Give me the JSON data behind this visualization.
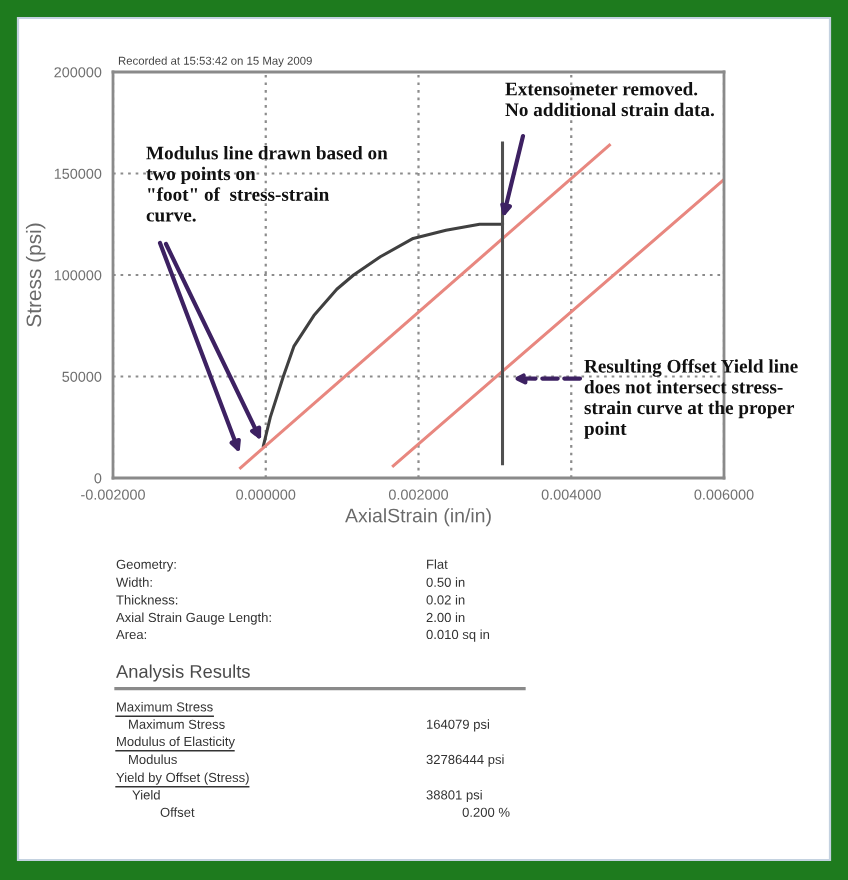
{
  "chart_data": {
    "type": "line",
    "xlabel": "AxialStrain (in/in)",
    "ylabel": "Stress (psi)",
    "xlim": [
      -0.002,
      0.006
    ],
    "ylim": [
      0,
      200000
    ],
    "xticks": [
      {
        "value": -0.002,
        "label": "-0.002000"
      },
      {
        "value": 0,
        "label": "0.000000"
      },
      {
        "value": 0.002,
        "label": "0.002000"
      },
      {
        "value": 0.004,
        "label": "0.004000"
      },
      {
        "value": 0.006,
        "label": "0.006000"
      }
    ],
    "yticks": [
      0,
      50000,
      100000,
      150000,
      200000
    ],
    "grid": true,
    "series": [
      {
        "color": "#404040",
        "x": [
          -3e-05,
          6e-05,
          0.00023,
          0.00037,
          0.00063,
          0.00093,
          0.00115,
          0.0015,
          0.00193,
          0.00236,
          0.0028,
          0.00301,
          0.0031
        ],
        "values": [
          16000,
          30000,
          50000,
          65000,
          80000,
          93000,
          100000,
          109000,
          118000,
          122000,
          125000,
          125000,
          125000
        ]
      },
      {
        "color": "#e8877f",
        "x": [
          -0.00033,
          0.0045
        ],
        "values": [
          5000,
          164000
        ]
      },
      {
        "color": "#e8877f",
        "x": [
          0.00167,
          0.006
        ],
        "values": [
          6000,
          147000
        ]
      },
      {
        "color": "#505050",
        "x": [
          0.0031,
          0.0031
        ],
        "values": [
          7000,
          165000
        ]
      }
    ],
    "annotations": [
      "Recorded at 15:53:42 on 15 May 2009",
      {
        "text": "Modulus line drawn based on\ntwo points on\n\"foot\" of  stress-strain\ncurve.",
        "x": -0.00033,
        "y": 11000
      },
      {
        "text": "Extensometer removed.\nNo additional strain data.",
        "x": 0.0031,
        "y": 127000
      },
      {
        "text": "Resulting Offset Yield line\ndoes not intersect stress-\nstrain curve at the proper\npoint",
        "x": 0.0032,
        "y": 49000
      },
      "Geometry:",
      "Flat",
      "Width:",
      "0.50 in",
      "Thickness:",
      "0.02 in",
      "Axial Strain Gauge Length:",
      "2.00 in",
      "Area:",
      "0.010 sq in",
      "Analysis Results",
      "Maximum Stress",
      "Maximum Stress",
      "164079 psi",
      "Modulus of Elasticity",
      "Modulus",
      "32786444 psi",
      "Yield by Offset (Stress)",
      "Yield",
      "38801 psi",
      "Offset",
      "0.200 %"
    ]
  }
}
